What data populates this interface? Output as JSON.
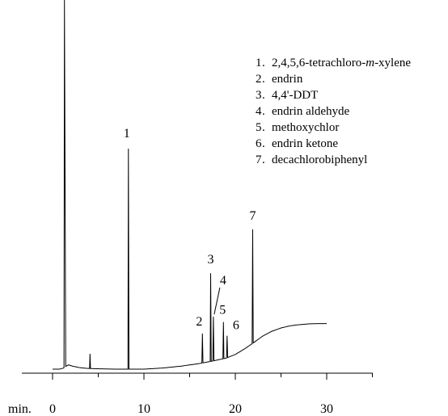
{
  "chart_data": {
    "type": "line",
    "title": "",
    "xlabel": "min.",
    "ylabel": "",
    "xlim": [
      -3,
      35
    ],
    "x_ticks": [
      0,
      10,
      20,
      30
    ],
    "x_tick_labels": [
      "0",
      "10",
      "20",
      "30"
    ],
    "peaks": [
      {
        "number": "1",
        "label": "2,4,5,6-tetrachloro-",
        "label_italic": "m",
        "label_suffix": "-xylene",
        "time": 8.3,
        "height": 0.6
      },
      {
        "number": "2",
        "label": "endrin",
        "time": 16.4,
        "height": 0.08
      },
      {
        "number": "3",
        "label": "4,4'-DDT",
        "time": 17.3,
        "height": 0.24
      },
      {
        "number": "4",
        "label": "endrin aldehyde",
        "time": 17.6,
        "height": 0.12
      },
      {
        "number": "5",
        "label": "methoxychlor",
        "time": 18.7,
        "height": 0.1
      },
      {
        "number": "6",
        "label": "endrin ketone",
        "time": 19.1,
        "height": 0.06
      },
      {
        "number": "7",
        "label": "decachlorobiphenyl",
        "time": 21.9,
        "height": 0.31
      }
    ],
    "baseline_points": [
      [
        0,
        0.0
      ],
      [
        0.8,
        0.0
      ],
      [
        1.2,
        0.003
      ],
      [
        1.7,
        0.012
      ],
      [
        2.2,
        0.008
      ],
      [
        3.0,
        0.004
      ],
      [
        3.8,
        0.002
      ],
      [
        5,
        0.001
      ],
      [
        7,
        0.0
      ],
      [
        10,
        0.0
      ],
      [
        12,
        0.003
      ],
      [
        14,
        0.008
      ],
      [
        16,
        0.015
      ],
      [
        17.5,
        0.022
      ],
      [
        19,
        0.03
      ],
      [
        20,
        0.04
      ],
      [
        21,
        0.055
      ],
      [
        22,
        0.072
      ],
      [
        23,
        0.09
      ],
      [
        24,
        0.103
      ],
      [
        25,
        0.112
      ],
      [
        26,
        0.118
      ],
      [
        27,
        0.121
      ],
      [
        28,
        0.123
      ],
      [
        29,
        0.124
      ],
      [
        30,
        0.124
      ]
    ],
    "solvent_peak": {
      "time": 1.3,
      "height": 1.0
    },
    "minor_peak": {
      "time": 4.1,
      "height": 0.04
    }
  }
}
